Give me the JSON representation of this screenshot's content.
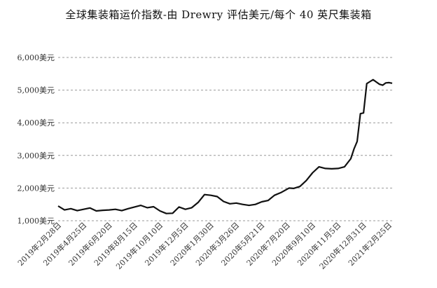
{
  "chart_data": {
    "type": "line",
    "title": "全球集装箱运价指数-由 Drewry 评估美元/每个 40 英尺集装箱",
    "xlabel": "",
    "ylabel": "",
    "ylim": [
      1000,
      6000
    ],
    "grid": true,
    "yticks": [
      "1,000美元",
      "2,000美元",
      "3,000美元",
      "4,000美元",
      "5,000美元",
      "6,000美元"
    ],
    "ytick_values": [
      1000,
      2000,
      3000,
      4000,
      5000,
      6000
    ],
    "xticks": [
      "2019年2月28日",
      "2019年4月25日",
      "2019年6月20日",
      "2019年8月15日",
      "2019年10月10日",
      "2019年12月5日",
      "2020年1月30日",
      "2020年3月26日",
      "2020年5月21日",
      "2020年7月20日",
      "2020年9月10日",
      "2020年11月5日",
      "2020年12月31日",
      "2021年2月25日"
    ],
    "x": [
      "2019-02-28",
      "2019-03-14",
      "2019-03-28",
      "2019-04-11",
      "2019-04-25",
      "2019-05-09",
      "2019-05-23",
      "2019-06-06",
      "2019-06-20",
      "2019-07-04",
      "2019-07-18",
      "2019-08-01",
      "2019-08-15",
      "2019-08-29",
      "2019-09-12",
      "2019-09-26",
      "2019-10-10",
      "2019-10-24",
      "2019-11-07",
      "2019-11-21",
      "2019-12-05",
      "2019-12-19",
      "2020-01-02",
      "2020-01-16",
      "2020-01-30",
      "2020-02-13",
      "2020-02-27",
      "2020-03-12",
      "2020-03-26",
      "2020-04-09",
      "2020-04-23",
      "2020-05-07",
      "2020-05-21",
      "2020-06-04",
      "2020-06-18",
      "2020-07-02",
      "2020-07-20",
      "2020-07-30",
      "2020-08-13",
      "2020-08-27",
      "2020-09-10",
      "2020-09-24",
      "2020-10-08",
      "2020-10-22",
      "2020-11-05",
      "2020-11-19",
      "2020-12-03",
      "2020-12-10",
      "2020-12-17",
      "2020-12-24",
      "2020-12-31",
      "2021-01-07",
      "2021-01-14",
      "2021-01-21",
      "2021-01-28",
      "2021-02-04",
      "2021-02-11",
      "2021-02-18",
      "2021-02-25",
      "2021-03-04"
    ],
    "series": [
      {
        "values": [
          1450,
          1330,
          1370,
          1310,
          1350,
          1390,
          1300,
          1320,
          1330,
          1350,
          1310,
          1370,
          1420,
          1470,
          1400,
          1430,
          1300,
          1220,
          1230,
          1420,
          1350,
          1400,
          1560,
          1800,
          1780,
          1740,
          1590,
          1520,
          1540,
          1500,
          1470,
          1500,
          1580,
          1620,
          1780,
          1860,
          2000,
          1990,
          2050,
          2230,
          2470,
          2650,
          2600,
          2590,
          2600,
          2650,
          2900,
          3200,
          3430,
          4280,
          4300,
          5200,
          5260,
          5320,
          5250,
          5180,
          5150,
          5220,
          5230,
          5210
        ]
      }
    ],
    "colors": {
      "line": "#111111",
      "grid": "#999999"
    }
  }
}
